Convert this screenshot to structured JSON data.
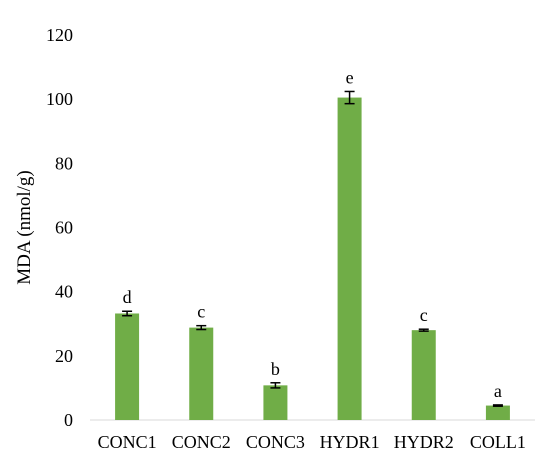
{
  "chart_data": {
    "type": "bar",
    "title": "",
    "xlabel": "",
    "ylabel": "MDA (nmol/g)",
    "ylim": [
      0,
      120
    ],
    "yticks": [
      0,
      20,
      40,
      60,
      80,
      100,
      120
    ],
    "grid": false,
    "legend": "none",
    "bar_color": "#70ad47",
    "error_color": "#000000",
    "categories": [
      "CONC1",
      "CONC2",
      "CONC3",
      "HYDR1",
      "HYDR2",
      "COLL1"
    ],
    "values": [
      33.2,
      28.8,
      10.8,
      100.5,
      28.0,
      4.5
    ],
    "errors": [
      0.7,
      0.6,
      0.8,
      1.9,
      0.3,
      0.2
    ],
    "significance_labels": [
      "d",
      "c",
      "b",
      "e",
      "c",
      "a"
    ]
  }
}
